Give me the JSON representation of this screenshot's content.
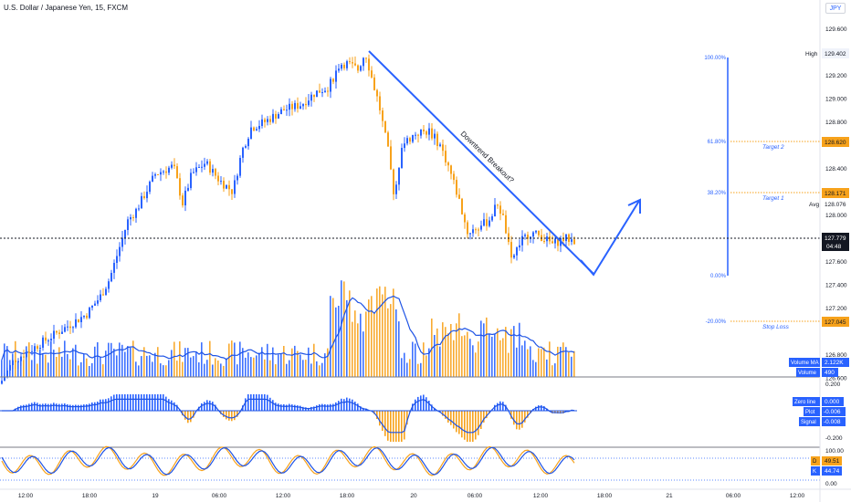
{
  "window": {
    "title": "U.S. Dollar / Japanese Yen, 15, FXCM",
    "currency_button": "JPY"
  },
  "colors": {
    "up": "#2962ff",
    "down": "#f7a21b",
    "volume_ma": "#1e53e5",
    "macd_signal": "#1e53e5",
    "stoch_k": "#f7a21b",
    "stoch_d": "#1e53e5",
    "label_blue": "#2962ff",
    "label_orange": "#f7a21b",
    "label_dark": "#131722"
  },
  "annotations": {
    "trendline_text": "Downtrend Breakout?",
    "target2": "Target 2",
    "target1": "Target  1",
    "stop_loss": "Stop Loss"
  },
  "fib_levels": [
    {
      "pct": "100.00%",
      "price": 129.402
    },
    {
      "pct": "61.80%",
      "price": 128.62
    },
    {
      "pct": "38.20%",
      "price": 128.171
    },
    {
      "pct": "0.00%",
      "price": 127.45
    },
    {
      "pct": "-20.00%",
      "price": 127.045
    }
  ],
  "price_axis": {
    "ticks": [
      "129.600",
      "129.402",
      "129.200",
      "129.000",
      "128.800",
      "128.620",
      "128.400",
      "128.171",
      "128.076",
      "128.000",
      "127.779",
      "127.600",
      "127.400",
      "127.200",
      "127.045",
      "126.800",
      "126.600"
    ],
    "tick_values": [
      129.6,
      129.402,
      129.2,
      129.0,
      128.8,
      128.62,
      128.4,
      128.171,
      128.076,
      128.0,
      127.779,
      127.6,
      127.4,
      127.2,
      127.045,
      126.8,
      126.6
    ],
    "range": [
      126.6,
      129.8
    ],
    "current_price": "127.779",
    "countdown": "04:48",
    "high_label": "High",
    "high_price": "129.402",
    "avg_label": "Avg",
    "avg_price": "128.076",
    "target2_price": "128.620",
    "target1_price": "128.171",
    "stop_price": "127.045"
  },
  "volume": {
    "ma_label": "Volume MA",
    "ma_value": "2.122K",
    "label": "Volume",
    "value": "490"
  },
  "macd": {
    "axis_top": "0.200",
    "axis_bottom": "-0.200",
    "zero_label": "Zero line",
    "zero_value": "0.000",
    "plot_label": "Plot",
    "plot_value": "-0.006",
    "signal_label": "Signal",
    "signal_value": "-0.008"
  },
  "stoch": {
    "axis_top": "100.00",
    "axis_bottom": "0.00",
    "d_label": "D",
    "d_value": "49.51",
    "k_label": "K",
    "k_value": "44.74"
  },
  "time_axis": [
    "12:00",
    "18:00",
    "19",
    "06:00",
    "12:00",
    "18:00",
    "20",
    "06:00",
    "12:00",
    "18:00",
    "21",
    "06:00",
    "12:00"
  ],
  "chart_data": {
    "type": "candlestick",
    "symbol": "U.S. Dollar / Japanese Yen",
    "interval": "15",
    "source": "FXCM",
    "ylim": [
      126.6,
      129.8
    ],
    "keypoints": [
      [
        0,
        126.55
      ],
      [
        15,
        126.75
      ],
      [
        35,
        126.85
      ],
      [
        55,
        126.95
      ],
      [
        75,
        127.05
      ],
      [
        95,
        127.15
      ],
      [
        110,
        127.3
      ],
      [
        120,
        127.45
      ],
      [
        130,
        127.7
      ],
      [
        140,
        127.95
      ],
      [
        150,
        128.05
      ],
      [
        160,
        128.2
      ],
      [
        170,
        128.35
      ],
      [
        190,
        128.42
      ],
      [
        200,
        128.1
      ],
      [
        210,
        128.35
      ],
      [
        225,
        128.45
      ],
      [
        240,
        128.3
      ],
      [
        255,
        128.2
      ],
      [
        265,
        128.55
      ],
      [
        275,
        128.75
      ],
      [
        290,
        128.8
      ],
      [
        310,
        128.9
      ],
      [
        330,
        128.95
      ],
      [
        345,
        129.05
      ],
      [
        360,
        129.1
      ],
      [
        372,
        129.3
      ],
      [
        380,
        129.3
      ],
      [
        392,
        129.25
      ],
      [
        400,
        129.4
      ],
      [
        408,
        129.15
      ],
      [
        415,
        128.95
      ],
      [
        425,
        128.55
      ],
      [
        432,
        128.15
      ],
      [
        440,
        128.6
      ],
      [
        455,
        128.7
      ],
      [
        470,
        128.72
      ],
      [
        482,
        128.6
      ],
      [
        492,
        128.4
      ],
      [
        502,
        128.15
      ],
      [
        512,
        127.85
      ],
      [
        525,
        127.9
      ],
      [
        535,
        127.95
      ],
      [
        545,
        128.1
      ],
      [
        552,
        127.95
      ],
      [
        560,
        127.6
      ],
      [
        568,
        127.75
      ],
      [
        580,
        127.85
      ],
      [
        592,
        127.82
      ],
      [
        605,
        127.75
      ],
      [
        618,
        127.8
      ],
      [
        630,
        127.78
      ]
    ]
  }
}
